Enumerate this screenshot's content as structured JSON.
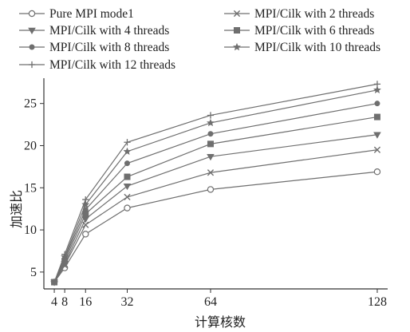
{
  "chart_data": {
    "type": "line",
    "title": "",
    "xlabel": "计算核数",
    "ylabel": "加速比",
    "x": [
      4,
      8,
      16,
      32,
      64,
      128
    ],
    "xticks": [
      "4",
      "8",
      "16",
      "32",
      "64",
      "128"
    ],
    "yticks": [
      "5",
      "10",
      "15",
      "20",
      "25"
    ],
    "xlim": [
      0,
      132
    ],
    "ylim": [
      3,
      28
    ],
    "grid": false,
    "legend_position": "top",
    "series": [
      {
        "name": "Pure MPI mode1",
        "marker": "open-circle",
        "values": [
          3.8,
          5.5,
          9.5,
          12.6,
          14.8,
          16.9
        ]
      },
      {
        "name": "MPI/Cilk with 2 threads",
        "marker": "x",
        "values": [
          3.8,
          5.8,
          10.6,
          13.9,
          16.8,
          19.5
        ]
      },
      {
        "name": "MPI/Cilk with 4 threads",
        "marker": "triangle-down",
        "values": [
          3.8,
          6.0,
          11.3,
          15.2,
          18.7,
          21.3
        ]
      },
      {
        "name": "MPI/Cilk with 6 threads",
        "marker": "square",
        "values": [
          3.8,
          6.3,
          11.9,
          16.3,
          20.2,
          23.4
        ]
      },
      {
        "name": "MPI/Cilk with 8 threads",
        "marker": "filled-circle",
        "values": [
          3.8,
          6.6,
          12.4,
          17.9,
          21.4,
          25.0
        ]
      },
      {
        "name": "MPI/Cilk with 10 threads",
        "marker": "star",
        "values": [
          3.8,
          6.8,
          13.0,
          19.3,
          22.7,
          26.6
        ]
      },
      {
        "name": "MPI/Cilk with 12 threads",
        "marker": "plus",
        "values": [
          3.8,
          7.1,
          13.6,
          20.4,
          23.6,
          27.3
        ]
      }
    ]
  }
}
